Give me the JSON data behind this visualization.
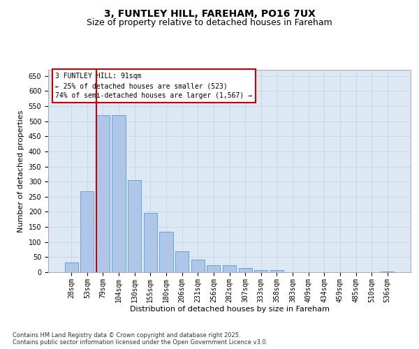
{
  "title_line1": "3, FUNTLEY HILL, FAREHAM, PO16 7UX",
  "title_line2": "Size of property relative to detached houses in Fareham",
  "xlabel": "Distribution of detached houses by size in Fareham",
  "ylabel": "Number of detached properties",
  "categories": [
    "28sqm",
    "53sqm",
    "79sqm",
    "104sqm",
    "130sqm",
    "155sqm",
    "180sqm",
    "206sqm",
    "231sqm",
    "256sqm",
    "282sqm",
    "307sqm",
    "333sqm",
    "358sqm",
    "383sqm",
    "409sqm",
    "434sqm",
    "459sqm",
    "485sqm",
    "510sqm",
    "536sqm"
  ],
  "values": [
    32,
    268,
    519,
    519,
    304,
    197,
    134,
    69,
    41,
    24,
    24,
    15,
    7,
    6,
    0,
    1,
    0,
    0,
    0,
    0,
    3
  ],
  "bar_color": "#aec6e8",
  "bar_edge_color": "#5b9bd5",
  "vline_color": "#cc0000",
  "annotation_box_text": "3 FUNTLEY HILL: 91sqm\n← 25% of detached houses are smaller (523)\n74% of semi-detached houses are larger (1,567) →",
  "annotation_box_color": "#cc0000",
  "annotation_box_bg": "#ffffff",
  "ylim": [
    0,
    670
  ],
  "yticks": [
    0,
    50,
    100,
    150,
    200,
    250,
    300,
    350,
    400,
    450,
    500,
    550,
    600,
    650
  ],
  "grid_color": "#c8d8e8",
  "background_color": "#dce9f5",
  "footer_text": "Contains HM Land Registry data © Crown copyright and database right 2025.\nContains public sector information licensed under the Open Government Licence v3.0.",
  "title_fontsize": 10,
  "subtitle_fontsize": 9,
  "axis_label_fontsize": 8,
  "tick_fontsize": 7,
  "footer_fontsize": 6
}
